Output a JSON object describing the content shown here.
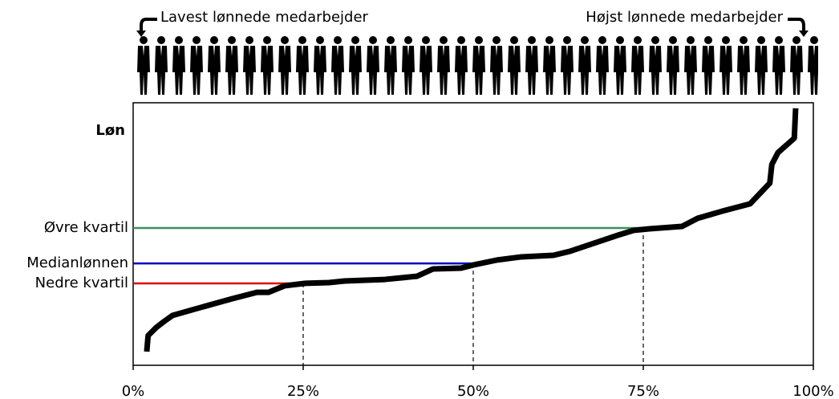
{
  "chart_data": {
    "type": "line",
    "y_label": "Løn",
    "left_annotation": "Lavest lønnede medarbejder",
    "right_annotation": "Højst lønnede medarbejder",
    "x": [
      2.0,
      2.2,
      3.4,
      4.6,
      5.8,
      9.9,
      14.6,
      18.2,
      19.9,
      22.3,
      25.2,
      28.8,
      31.1,
      37.0,
      41.7,
      44.1,
      48.2,
      50.0,
      53.5,
      57.1,
      61.8,
      64.2,
      71.2,
      73.6,
      75.9,
      80.7,
      83.0,
      86.6,
      90.7,
      93.6,
      93.9,
      94.8,
      97.2,
      97.4
    ],
    "values": [
      5.2,
      11.3,
      14.4,
      16.8,
      19.0,
      22.0,
      25.4,
      27.8,
      27.8,
      30.3,
      31.2,
      31.5,
      32.1,
      32.7,
      33.9,
      36.7,
      37.0,
      38.2,
      40.1,
      41.3,
      41.9,
      43.4,
      49.5,
      51.4,
      52.0,
      52.9,
      56.0,
      58.7,
      61.5,
      69.4,
      76.5,
      81.0,
      86.5,
      97.9
    ],
    "color": "#000000",
    "reference_lines": [
      {
        "label": "Øvre kvartil",
        "x": 75,
        "y": 52.3,
        "color": "#3a8f5f"
      },
      {
        "label": "Medianlønnen",
        "x": 50,
        "y": 38.8,
        "color": "#0000c0"
      },
      {
        "label": "Nedre kvartil",
        "x": 25,
        "y": 31.2,
        "color": "#e00000"
      }
    ],
    "xlim": [
      0,
      100
    ],
    "xticks": [
      {
        "value": 0,
        "label": "0%"
      },
      {
        "value": 25,
        "label": "25%"
      },
      {
        "value": 50,
        "label": "50%"
      },
      {
        "value": 75,
        "label": "75%"
      },
      {
        "value": 100,
        "label": "100%"
      }
    ],
    "ylim": [
      0,
      100
    ]
  }
}
